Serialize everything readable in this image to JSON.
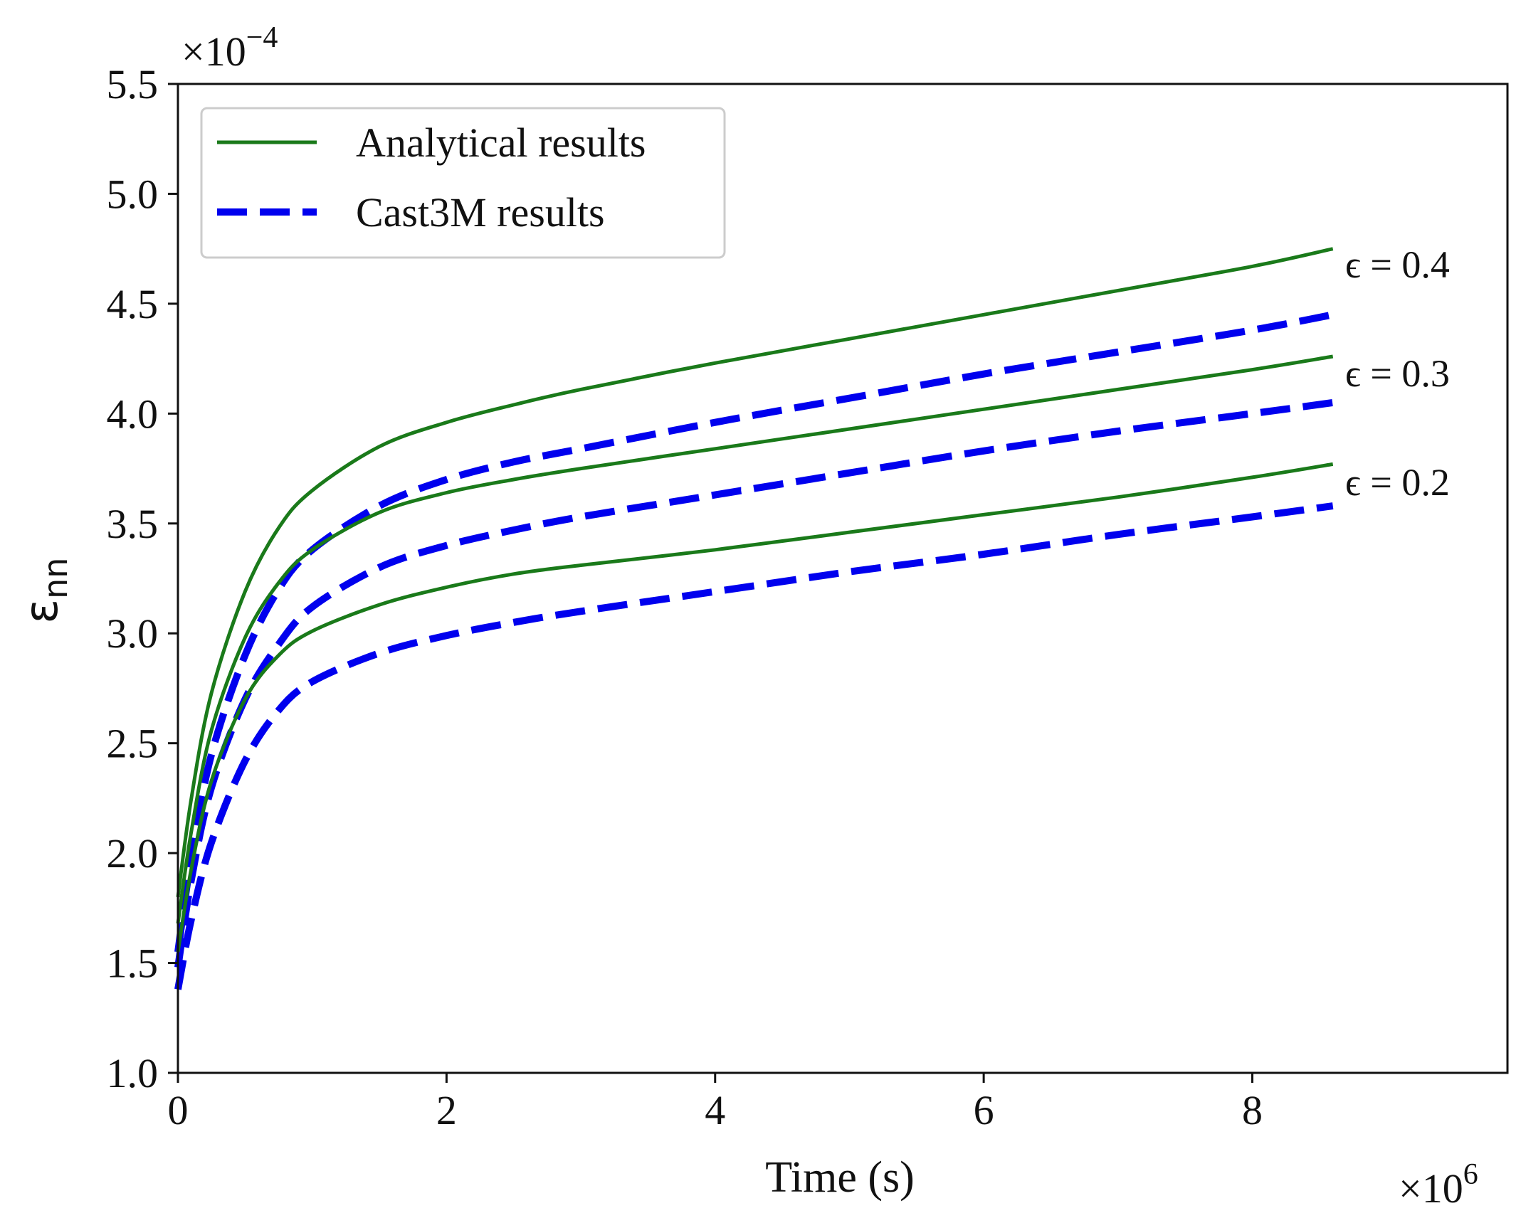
{
  "chart_data": {
    "type": "line",
    "title": "",
    "xlabel": "Time (s)",
    "ylabel_main": "ε",
    "ylabel_sub": "nn",
    "x_multiplier": "×10",
    "x_multiplier_exp": "6",
    "y_multiplier": "×10",
    "y_multiplier_exp": "−4",
    "xlim": [
      0,
      9.9
    ],
    "ylim": [
      1.0,
      5.5
    ],
    "xticks": [
      0,
      2,
      4,
      6,
      8
    ],
    "xtick_labels": [
      "0",
      "2",
      "4",
      "6",
      "8"
    ],
    "yticks": [
      1.0,
      1.5,
      2.0,
      2.5,
      3.0,
      3.5,
      4.0,
      4.5,
      5.0,
      5.5
    ],
    "ytick_labels": [
      "1.0",
      "1.5",
      "2.0",
      "2.5",
      "3.0",
      "3.5",
      "4.0",
      "4.5",
      "5.0",
      "5.5"
    ],
    "legend": {
      "position": "top-left",
      "entries": [
        {
          "label": "Analytical results",
          "style": "solid",
          "color": "#1a7a1a"
        },
        {
          "label": "Cast3M results",
          "style": "dashed",
          "color": "#0000ee"
        }
      ]
    },
    "curve_labels": [
      {
        "text": "ϵ = 0.4",
        "x": 8.65,
        "y": 4.75
      },
      {
        "text": "ϵ = 0.3",
        "x": 8.65,
        "y": 4.26
      },
      {
        "text": "ϵ = 0.2",
        "x": 8.65,
        "y": 3.77
      }
    ],
    "series": [
      {
        "name": "Analytical ϵ = 0.4",
        "style": "solid",
        "color": "#1a7a1a",
        "x": [
          0,
          0.1,
          0.25,
          0.5,
          0.75,
          1.0,
          1.5,
          2.0,
          2.5,
          3.0,
          4.0,
          5.0,
          6.0,
          7.0,
          8.0,
          8.6
        ],
        "y": [
          1.8,
          2.25,
          2.73,
          3.19,
          3.48,
          3.65,
          3.85,
          3.96,
          4.04,
          4.11,
          4.23,
          4.34,
          4.45,
          4.56,
          4.67,
          4.75
        ]
      },
      {
        "name": "Cast3M ϵ = 0.4",
        "style": "dashed",
        "color": "#0000ee",
        "x": [
          0,
          0.1,
          0.25,
          0.5,
          0.75,
          1.0,
          1.5,
          2.0,
          2.5,
          3.0,
          4.0,
          5.0,
          6.0,
          7.0,
          8.0,
          8.6
        ],
        "y": [
          1.55,
          1.98,
          2.45,
          2.9,
          3.2,
          3.38,
          3.58,
          3.7,
          3.78,
          3.84,
          3.96,
          4.07,
          4.18,
          4.28,
          4.38,
          4.45
        ]
      },
      {
        "name": "Analytical ϵ = 0.3",
        "style": "solid",
        "color": "#1a7a1a",
        "x": [
          0,
          0.1,
          0.25,
          0.5,
          0.75,
          1.0,
          1.5,
          2.0,
          2.5,
          3.0,
          4.0,
          5.0,
          6.0,
          7.0,
          8.0,
          8.6
        ],
        "y": [
          1.68,
          2.1,
          2.56,
          2.98,
          3.23,
          3.38,
          3.55,
          3.64,
          3.7,
          3.75,
          3.84,
          3.93,
          4.02,
          4.11,
          4.2,
          4.26
        ]
      },
      {
        "name": "Cast3M ϵ = 0.3",
        "style": "dashed",
        "color": "#0000ee",
        "x": [
          0,
          0.1,
          0.25,
          0.5,
          0.75,
          1.0,
          1.5,
          2.0,
          2.5,
          3.0,
          4.0,
          5.0,
          6.0,
          7.0,
          8.0,
          8.6
        ],
        "y": [
          1.48,
          1.88,
          2.3,
          2.7,
          2.95,
          3.12,
          3.3,
          3.4,
          3.47,
          3.53,
          3.63,
          3.73,
          3.83,
          3.92,
          4.0,
          4.05
        ]
      },
      {
        "name": "Analytical ϵ = 0.2",
        "style": "solid",
        "color": "#1a7a1a",
        "x": [
          0,
          0.1,
          0.25,
          0.5,
          0.75,
          1.0,
          1.5,
          2.0,
          2.5,
          3.0,
          4.0,
          5.0,
          6.0,
          7.0,
          8.0,
          8.6
        ],
        "y": [
          1.55,
          1.93,
          2.33,
          2.7,
          2.9,
          3.01,
          3.13,
          3.21,
          3.27,
          3.31,
          3.38,
          3.46,
          3.54,
          3.62,
          3.71,
          3.77
        ]
      },
      {
        "name": "Cast3M ϵ = 0.2",
        "style": "dashed",
        "color": "#0000ee",
        "x": [
          0,
          0.1,
          0.25,
          0.5,
          0.75,
          1.0,
          1.5,
          2.0,
          2.5,
          3.0,
          4.0,
          5.0,
          6.0,
          7.0,
          8.0,
          8.6
        ],
        "y": [
          1.38,
          1.7,
          2.05,
          2.42,
          2.65,
          2.78,
          2.91,
          2.99,
          3.05,
          3.1,
          3.19,
          3.28,
          3.36,
          3.45,
          3.53,
          3.58
        ]
      }
    ]
  }
}
